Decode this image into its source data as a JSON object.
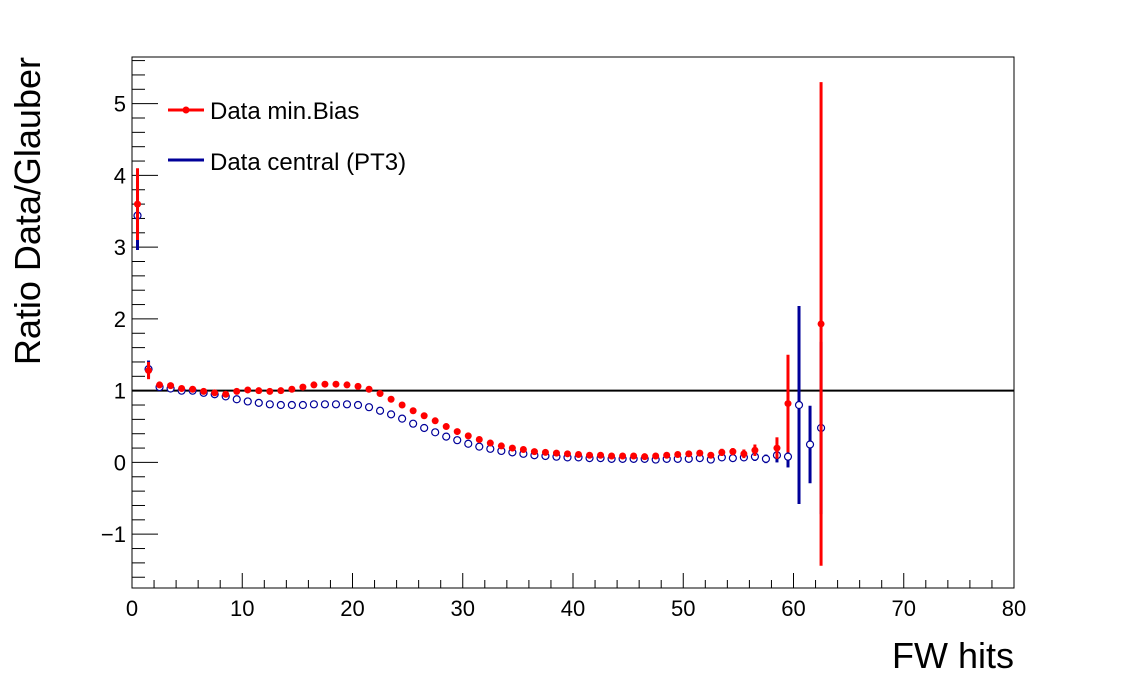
{
  "chart_data": {
    "type": "scatter",
    "xlabel": "FW hits",
    "ylabel": "Ratio Data/Glauber",
    "xlim": [
      0,
      80
    ],
    "ylim": [
      -1.75,
      5.65
    ],
    "x_ticks": [
      0,
      10,
      20,
      30,
      40,
      50,
      60,
      70,
      80
    ],
    "y_ticks": [
      -1,
      0,
      1,
      2,
      3,
      4,
      5
    ],
    "x_tick_labels": [
      "0",
      "10",
      "20",
      "30",
      "40",
      "50",
      "60",
      "70",
      "80"
    ],
    "y_tick_labels": [
      "−1",
      "0",
      "1",
      "2",
      "3",
      "4",
      "5"
    ],
    "reference_line": 1,
    "grid": false,
    "legend_position": "top-left",
    "series": [
      {
        "name": "Data min.Bias",
        "color": "#ff0000",
        "marker": "filled-circle",
        "x": [
          0.5,
          1.5,
          2.5,
          3.5,
          4.5,
          5.5,
          6.5,
          7.5,
          8.5,
          9.5,
          10.5,
          11.5,
          12.5,
          13.5,
          14.5,
          15.5,
          16.5,
          17.5,
          18.5,
          19.5,
          20.5,
          21.5,
          22.5,
          23.5,
          24.5,
          25.5,
          26.5,
          27.5,
          28.5,
          29.5,
          30.5,
          31.5,
          32.5,
          33.5,
          34.5,
          35.5,
          36.5,
          37.5,
          38.5,
          39.5,
          40.5,
          41.5,
          42.5,
          43.5,
          44.5,
          45.5,
          46.5,
          47.5,
          48.5,
          49.5,
          50.5,
          51.5,
          52.5,
          53.5,
          54.5,
          55.5,
          56.5,
          58.5,
          59.5,
          62.5
        ],
        "y": [
          3.6,
          1.28,
          1.08,
          1.07,
          1.03,
          1.02,
          0.99,
          0.97,
          0.95,
          0.99,
          1.01,
          1.0,
          0.99,
          1.0,
          1.02,
          1.05,
          1.08,
          1.09,
          1.09,
          1.08,
          1.06,
          1.02,
          0.96,
          0.88,
          0.8,
          0.72,
          0.65,
          0.58,
          0.5,
          0.43,
          0.37,
          0.32,
          0.27,
          0.23,
          0.2,
          0.18,
          0.15,
          0.14,
          0.13,
          0.12,
          0.11,
          0.1,
          0.1,
          0.09,
          0.09,
          0.09,
          0.08,
          0.09,
          0.1,
          0.11,
          0.12,
          0.13,
          0.1,
          0.14,
          0.15,
          0.12,
          0.17,
          0.2,
          0.82,
          1.93
        ],
        "err": [
          0.5,
          0.12,
          0.04,
          0.03,
          0.02,
          0.02,
          0.02,
          0.02,
          0.02,
          0.02,
          0.02,
          0.02,
          0.02,
          0.02,
          0.02,
          0.02,
          0.02,
          0.02,
          0.02,
          0.02,
          0.02,
          0.02,
          0.02,
          0.02,
          0.02,
          0.02,
          0.02,
          0.02,
          0.02,
          0.02,
          0.02,
          0.02,
          0.02,
          0.02,
          0.02,
          0.02,
          0.02,
          0.02,
          0.02,
          0.02,
          0.02,
          0.02,
          0.02,
          0.02,
          0.02,
          0.02,
          0.02,
          0.02,
          0.02,
          0.03,
          0.03,
          0.04,
          0.04,
          0.05,
          0.05,
          0.06,
          0.08,
          0.15,
          0.68,
          3.37
        ]
      },
      {
        "name": "Data central (PT3)",
        "color": "#000099",
        "marker": "open-circle",
        "x": [
          0.5,
          1.5,
          2.5,
          3.5,
          4.5,
          5.5,
          6.5,
          7.5,
          8.5,
          9.5,
          10.5,
          11.5,
          12.5,
          13.5,
          14.5,
          15.5,
          16.5,
          17.5,
          18.5,
          19.5,
          20.5,
          21.5,
          22.5,
          23.5,
          24.5,
          25.5,
          26.5,
          27.5,
          28.5,
          29.5,
          30.5,
          31.5,
          32.5,
          33.5,
          34.5,
          35.5,
          36.5,
          37.5,
          38.5,
          39.5,
          40.5,
          41.5,
          42.5,
          43.5,
          44.5,
          45.5,
          46.5,
          47.5,
          48.5,
          49.5,
          50.5,
          51.5,
          52.5,
          53.5,
          54.5,
          55.5,
          56.5,
          57.5,
          58.5,
          59.5,
          60.5,
          61.5,
          62.5
        ],
        "y": [
          3.44,
          1.3,
          1.05,
          1.03,
          1.0,
          1.0,
          0.97,
          0.95,
          0.92,
          0.88,
          0.85,
          0.83,
          0.81,
          0.8,
          0.8,
          0.8,
          0.81,
          0.81,
          0.81,
          0.81,
          0.8,
          0.77,
          0.72,
          0.67,
          0.61,
          0.54,
          0.48,
          0.42,
          0.36,
          0.31,
          0.26,
          0.22,
          0.19,
          0.16,
          0.14,
          0.12,
          0.1,
          0.09,
          0.08,
          0.07,
          0.07,
          0.06,
          0.06,
          0.05,
          0.05,
          0.05,
          0.05,
          0.04,
          0.05,
          0.05,
          0.05,
          0.06,
          0.04,
          0.07,
          0.06,
          0.07,
          0.08,
          0.05,
          0.1,
          0.08,
          0.8,
          0.25,
          0.48
        ],
        "err": [
          0.48,
          0.12,
          0.04,
          0.03,
          0.02,
          0.02,
          0.02,
          0.02,
          0.02,
          0.02,
          0.02,
          0.02,
          0.02,
          0.02,
          0.02,
          0.02,
          0.02,
          0.02,
          0.02,
          0.02,
          0.02,
          0.02,
          0.02,
          0.02,
          0.02,
          0.02,
          0.02,
          0.02,
          0.02,
          0.02,
          0.02,
          0.02,
          0.02,
          0.02,
          0.02,
          0.02,
          0.02,
          0.02,
          0.02,
          0.02,
          0.02,
          0.02,
          0.02,
          0.02,
          0.02,
          0.02,
          0.02,
          0.02,
          0.02,
          0.02,
          0.02,
          0.03,
          0.03,
          0.04,
          0.04,
          0.05,
          0.06,
          0.06,
          0.1,
          0.15,
          1.38,
          0.54,
          1.2
        ]
      }
    ]
  }
}
